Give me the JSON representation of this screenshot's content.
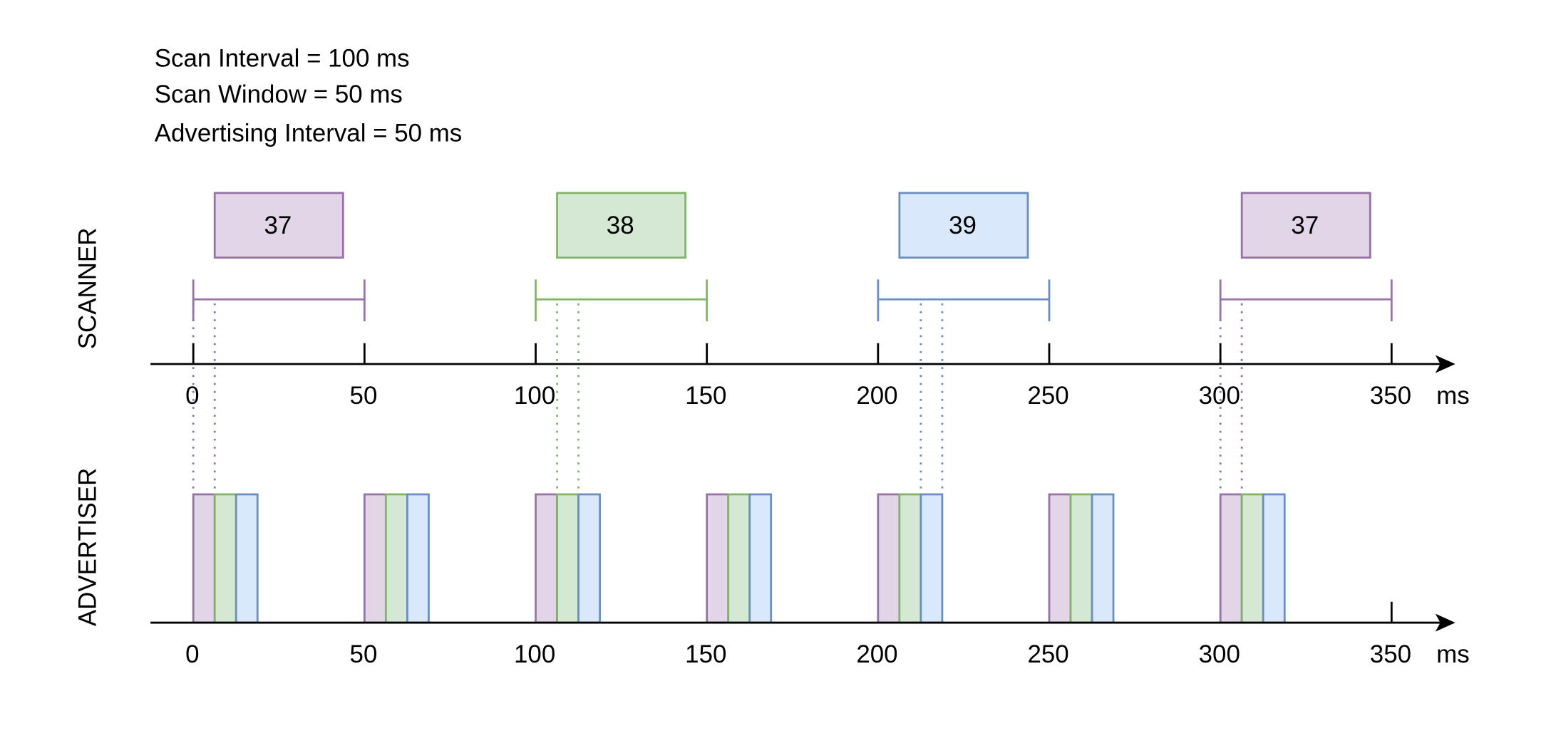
{
  "params": [
    "Scan Interval = 100 ms",
    "Scan Window = 50 ms",
    "Advertising Interval = 50 ms"
  ],
  "scanner": {
    "label": "SCANNER",
    "windows": [
      {
        "start": 0,
        "channel": "37",
        "color": "purple"
      },
      {
        "start": 100,
        "channel": "38",
        "color": "green"
      },
      {
        "start": 200,
        "channel": "39",
        "color": "blue"
      },
      {
        "start": 300,
        "channel": "37",
        "color": "purple"
      }
    ],
    "window_length": 50
  },
  "advertiser": {
    "label": "ADVERTISER",
    "event_starts": [
      0,
      50,
      100,
      150,
      200,
      250,
      300
    ],
    "packet_duration": 6.25,
    "packet_sequence": [
      "purple",
      "green",
      "blue"
    ]
  },
  "axis": {
    "ticks": [
      "0",
      "50",
      "100",
      "150",
      "200",
      "250",
      "300",
      "350"
    ],
    "unit": "ms"
  },
  "colors": {
    "purple": {
      "stroke": "#9673a6",
      "fill": "#e1d5e7"
    },
    "green": {
      "stroke": "#82b366",
      "fill": "#d5e8d4"
    },
    "blue": {
      "stroke": "#6c8ebf",
      "fill": "#dae8fc"
    }
  }
}
